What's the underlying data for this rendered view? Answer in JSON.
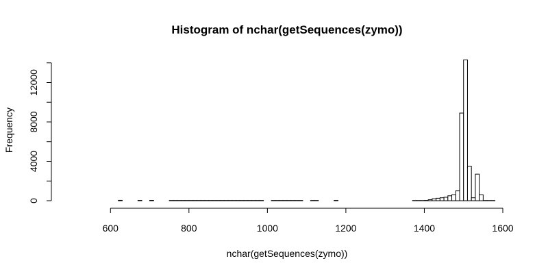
{
  "chart_data": {
    "type": "bar",
    "title": "Histogram of nchar(getSequences(zymo))",
    "xlabel": "nchar(getSequences(zymo))",
    "ylabel": "Frequency",
    "xlim": [
      500,
      1600
    ],
    "ylim": [
      0,
      14400
    ],
    "x_ticks": [
      600,
      800,
      1000,
      1200,
      1400,
      1600
    ],
    "y_ticks": [
      0,
      4000,
      8000,
      12000
    ],
    "minor_y_ticks": [
      2000,
      6000,
      10000,
      14000
    ],
    "grid": false,
    "bin_width": 10,
    "bins": [
      {
        "start": 500,
        "count": 0
      },
      {
        "start": 510,
        "count": 0
      },
      {
        "start": 520,
        "count": 0
      },
      {
        "start": 530,
        "count": 0
      },
      {
        "start": 540,
        "count": 0
      },
      {
        "start": 550,
        "count": 0
      },
      {
        "start": 560,
        "count": 0
      },
      {
        "start": 570,
        "count": 0
      },
      {
        "start": 580,
        "count": 0
      },
      {
        "start": 590,
        "count": 0
      },
      {
        "start": 600,
        "count": 0
      },
      {
        "start": 610,
        "count": 0
      },
      {
        "start": 620,
        "count": 40
      },
      {
        "start": 630,
        "count": 0
      },
      {
        "start": 640,
        "count": 0
      },
      {
        "start": 650,
        "count": 0
      },
      {
        "start": 660,
        "count": 0
      },
      {
        "start": 670,
        "count": 30
      },
      {
        "start": 680,
        "count": 0
      },
      {
        "start": 690,
        "count": 0
      },
      {
        "start": 700,
        "count": 35
      },
      {
        "start": 710,
        "count": 0
      },
      {
        "start": 720,
        "count": 0
      },
      {
        "start": 730,
        "count": 0
      },
      {
        "start": 740,
        "count": 0
      },
      {
        "start": 750,
        "count": 25
      },
      {
        "start": 760,
        "count": 25
      },
      {
        "start": 770,
        "count": 25
      },
      {
        "start": 780,
        "count": 25
      },
      {
        "start": 790,
        "count": 25
      },
      {
        "start": 800,
        "count": 25
      },
      {
        "start": 810,
        "count": 25
      },
      {
        "start": 820,
        "count": 25
      },
      {
        "start": 830,
        "count": 25
      },
      {
        "start": 840,
        "count": 25
      },
      {
        "start": 850,
        "count": 25
      },
      {
        "start": 860,
        "count": 25
      },
      {
        "start": 870,
        "count": 25
      },
      {
        "start": 880,
        "count": 25
      },
      {
        "start": 890,
        "count": 25
      },
      {
        "start": 900,
        "count": 25
      },
      {
        "start": 910,
        "count": 25
      },
      {
        "start": 920,
        "count": 25
      },
      {
        "start": 930,
        "count": 25
      },
      {
        "start": 940,
        "count": 25
      },
      {
        "start": 950,
        "count": 25
      },
      {
        "start": 960,
        "count": 25
      },
      {
        "start": 970,
        "count": 25
      },
      {
        "start": 980,
        "count": 25
      },
      {
        "start": 990,
        "count": 0
      },
      {
        "start": 1000,
        "count": 0
      },
      {
        "start": 1010,
        "count": 25
      },
      {
        "start": 1020,
        "count": 25
      },
      {
        "start": 1030,
        "count": 25
      },
      {
        "start": 1040,
        "count": 25
      },
      {
        "start": 1050,
        "count": 25
      },
      {
        "start": 1060,
        "count": 25
      },
      {
        "start": 1070,
        "count": 25
      },
      {
        "start": 1080,
        "count": 25
      },
      {
        "start": 1090,
        "count": 0
      },
      {
        "start": 1100,
        "count": 0
      },
      {
        "start": 1110,
        "count": 25
      },
      {
        "start": 1120,
        "count": 25
      },
      {
        "start": 1130,
        "count": 0
      },
      {
        "start": 1140,
        "count": 0
      },
      {
        "start": 1150,
        "count": 0
      },
      {
        "start": 1160,
        "count": 0
      },
      {
        "start": 1170,
        "count": 30
      },
      {
        "start": 1180,
        "count": 0
      },
      {
        "start": 1190,
        "count": 0
      },
      {
        "start": 1200,
        "count": 0
      },
      {
        "start": 1210,
        "count": 0
      },
      {
        "start": 1220,
        "count": 0
      },
      {
        "start": 1230,
        "count": 0
      },
      {
        "start": 1240,
        "count": 0
      },
      {
        "start": 1250,
        "count": 0
      },
      {
        "start": 1260,
        "count": 0
      },
      {
        "start": 1270,
        "count": 0
      },
      {
        "start": 1280,
        "count": 0
      },
      {
        "start": 1290,
        "count": 0
      },
      {
        "start": 1300,
        "count": 0
      },
      {
        "start": 1310,
        "count": 0
      },
      {
        "start": 1320,
        "count": 0
      },
      {
        "start": 1330,
        "count": 0
      },
      {
        "start": 1340,
        "count": 0
      },
      {
        "start": 1350,
        "count": 0
      },
      {
        "start": 1360,
        "count": 0
      },
      {
        "start": 1370,
        "count": 20
      },
      {
        "start": 1380,
        "count": 20
      },
      {
        "start": 1390,
        "count": 20
      },
      {
        "start": 1400,
        "count": 30
      },
      {
        "start": 1410,
        "count": 100
      },
      {
        "start": 1420,
        "count": 200
      },
      {
        "start": 1430,
        "count": 250
      },
      {
        "start": 1440,
        "count": 300
      },
      {
        "start": 1450,
        "count": 350
      },
      {
        "start": 1460,
        "count": 500
      },
      {
        "start": 1470,
        "count": 600
      },
      {
        "start": 1480,
        "count": 1000
      },
      {
        "start": 1490,
        "count": 8900
      },
      {
        "start": 1500,
        "count": 14300
      },
      {
        "start": 1510,
        "count": 3500
      },
      {
        "start": 1520,
        "count": 300
      },
      {
        "start": 1530,
        "count": 2700
      },
      {
        "start": 1540,
        "count": 600
      },
      {
        "start": 1550,
        "count": 20
      },
      {
        "start": 1560,
        "count": 20
      },
      {
        "start": 1570,
        "count": 20
      }
    ]
  }
}
